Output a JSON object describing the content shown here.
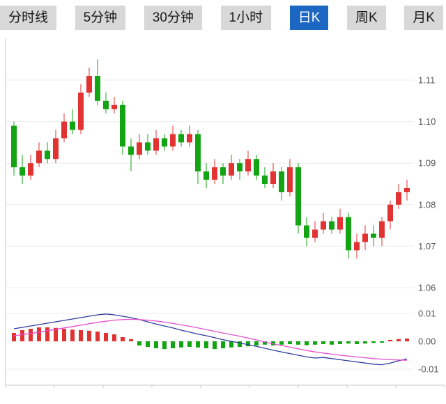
{
  "toolbar": {
    "tabs": [
      {
        "key": "timeline",
        "label": "分时线",
        "active": false
      },
      {
        "key": "5min",
        "label": "5分钟",
        "active": false
      },
      {
        "key": "30min",
        "label": "30分钟",
        "active": false
      },
      {
        "key": "1hour",
        "label": "1小时",
        "active": false
      },
      {
        "key": "daily-k",
        "label": "日K",
        "active": true
      },
      {
        "key": "weekly-k",
        "label": "周K",
        "active": false
      },
      {
        "key": "monthly-k",
        "label": "月K",
        "active": false
      }
    ]
  },
  "chart_data": {
    "type": "candlestick",
    "title": "",
    "price_axis_labels": [
      "1.11",
      "1.10",
      "1.09",
      "1.08",
      "1.07",
      "1.06"
    ],
    "macd_axis_labels": [
      "0.01",
      "0.00",
      "-0.01"
    ],
    "price_range": [
      1.06,
      1.115
    ],
    "ohlc_format": [
      "open",
      "high",
      "low",
      "close"
    ],
    "candles": [
      [
        1.099,
        1.1,
        1.087,
        1.089
      ],
      [
        1.089,
        1.092,
        1.085,
        1.087
      ],
      [
        1.087,
        1.092,
        1.086,
        1.09
      ],
      [
        1.09,
        1.095,
        1.089,
        1.093
      ],
      [
        1.093,
        1.095,
        1.09,
        1.091
      ],
      [
        1.091,
        1.098,
        1.09,
        1.096
      ],
      [
        1.096,
        1.102,
        1.095,
        1.1
      ],
      [
        1.1,
        1.103,
        1.097,
        1.098
      ],
      [
        1.098,
        1.109,
        1.097,
        1.107
      ],
      [
        1.107,
        1.113,
        1.106,
        1.111
      ],
      [
        1.111,
        1.115,
        1.104,
        1.105
      ],
      [
        1.105,
        1.107,
        1.102,
        1.103
      ],
      [
        1.103,
        1.106,
        1.102,
        1.104
      ],
      [
        1.104,
        1.105,
        1.092,
        1.094
      ],
      [
        1.094,
        1.096,
        1.088,
        1.092
      ],
      [
        1.092,
        1.097,
        1.091,
        1.095
      ],
      [
        1.095,
        1.097,
        1.092,
        1.093
      ],
      [
        1.093,
        1.098,
        1.092,
        1.096
      ],
      [
        1.096,
        1.097,
        1.093,
        1.094
      ],
      [
        1.094,
        1.099,
        1.093,
        1.097
      ],
      [
        1.097,
        1.098,
        1.094,
        1.095
      ],
      [
        1.095,
        1.099,
        1.094,
        1.097
      ],
      [
        1.097,
        1.098,
        1.085,
        1.088
      ],
      [
        1.088,
        1.09,
        1.084,
        1.086
      ],
      [
        1.086,
        1.091,
        1.085,
        1.089
      ],
      [
        1.089,
        1.09,
        1.085,
        1.087
      ],
      [
        1.087,
        1.092,
        1.086,
        1.09
      ],
      [
        1.09,
        1.091,
        1.086,
        1.088
      ],
      [
        1.088,
        1.093,
        1.087,
        1.091
      ],
      [
        1.091,
        1.092,
        1.086,
        1.087
      ],
      [
        1.087,
        1.089,
        1.084,
        1.085
      ],
      [
        1.085,
        1.09,
        1.084,
        1.088
      ],
      [
        1.088,
        1.089,
        1.081,
        1.083
      ],
      [
        1.083,
        1.091,
        1.082,
        1.089
      ],
      [
        1.089,
        1.09,
        1.073,
        1.075
      ],
      [
        1.075,
        1.077,
        1.07,
        1.072
      ],
      [
        1.072,
        1.076,
        1.071,
        1.074
      ],
      [
        1.074,
        1.078,
        1.073,
        1.076
      ],
      [
        1.076,
        1.077,
        1.073,
        1.074
      ],
      [
        1.074,
        1.079,
        1.073,
        1.077
      ],
      [
        1.077,
        1.078,
        1.067,
        1.069
      ],
      [
        1.069,
        1.073,
        1.067,
        1.071
      ],
      [
        1.071,
        1.075,
        1.069,
        1.073
      ],
      [
        1.073,
        1.075,
        1.07,
        1.072
      ],
      [
        1.072,
        1.077,
        1.07,
        1.076
      ],
      [
        1.076,
        1.081,
        1.074,
        1.08
      ],
      [
        1.08,
        1.085,
        1.079,
        1.083
      ],
      [
        1.083,
        1.086,
        1.081,
        1.084
      ]
    ],
    "macd": {
      "histogram": [
        0.003,
        0.004,
        0.0045,
        0.005,
        0.005,
        0.0048,
        0.0045,
        0.0042,
        0.004,
        0.0038,
        0.0035,
        0.003,
        0.0025,
        0.0015,
        0.0008,
        -0.0015,
        -0.002,
        -0.0025,
        -0.0028,
        -0.0025,
        -0.0022,
        -0.002,
        -0.0022,
        -0.0025,
        -0.0028,
        -0.0025,
        -0.0022,
        -0.002,
        -0.0018,
        -0.0015,
        -0.0012,
        -0.0015,
        -0.0012,
        -0.001,
        -0.0012,
        -0.0014,
        -0.0012,
        -0.001,
        -0.0012,
        -0.001,
        -0.0008,
        -0.001,
        -0.0008,
        -0.0006,
        -0.0005,
        0.0005,
        0.0008,
        0.001
      ],
      "dif": [
        0.0045,
        0.005,
        0.0055,
        0.006,
        0.0065,
        0.007,
        0.0075,
        0.008,
        0.0085,
        0.009,
        0.0095,
        0.0098,
        0.0095,
        0.009,
        0.0085,
        0.0078,
        0.007,
        0.0062,
        0.0055,
        0.0048,
        0.004,
        0.0033,
        0.0026,
        0.002,
        0.0013,
        0.0006,
        0,
        -0.0006,
        -0.0012,
        -0.0018,
        -0.0025,
        -0.0032,
        -0.0038,
        -0.0044,
        -0.005,
        -0.0056,
        -0.006,
        -0.0058,
        -0.0062,
        -0.0066,
        -0.007,
        -0.0074,
        -0.0078,
        -0.0082,
        -0.0084,
        -0.0078,
        -0.007,
        -0.0063
      ],
      "dea": [
        0.002,
        0.0024,
        0.0028,
        0.0033,
        0.0038,
        0.0043,
        0.0048,
        0.0053,
        0.0058,
        0.0063,
        0.0068,
        0.0072,
        0.0076,
        0.0078,
        0.0079,
        0.0078,
        0.0076,
        0.0073,
        0.0069,
        0.0064,
        0.0059,
        0.0054,
        0.0048,
        0.0042,
        0.0036,
        0.003,
        0.0024,
        0.0018,
        0.0012,
        0.0005,
        -0.0002,
        -0.0009,
        -0.0015,
        -0.0021,
        -0.0027,
        -0.0033,
        -0.0038,
        -0.0042,
        -0.0046,
        -0.005,
        -0.0053,
        -0.0056,
        -0.0059,
        -0.0062,
        -0.0064,
        -0.0066,
        -0.0067,
        -0.0068
      ]
    },
    "colors": {
      "up": "#e23333",
      "down": "#12a412",
      "dif_line": "#2f3b9e",
      "dea_line": "#e44fd0",
      "active_tab": "#1b67c2",
      "grid": "#ececec",
      "axis": "#c8c8c8",
      "label_text": "#555555"
    }
  }
}
